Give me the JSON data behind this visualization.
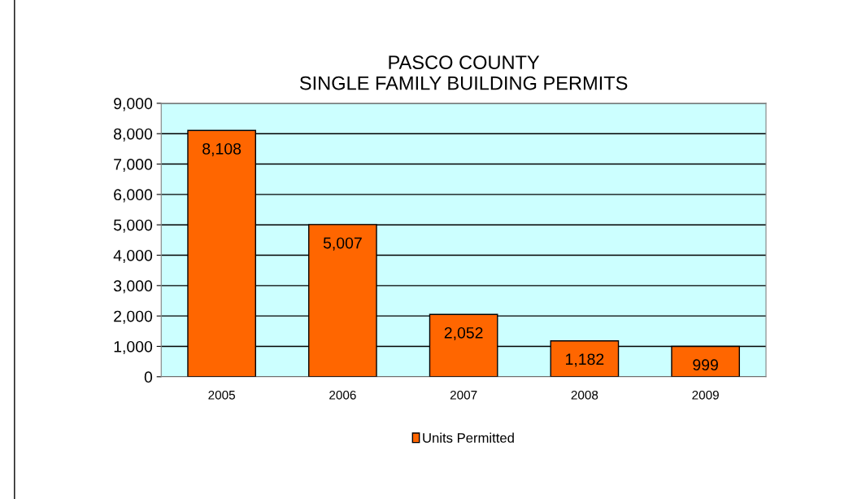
{
  "chart_data": {
    "type": "bar",
    "title": "PASCO COUNTY\nSINGLE FAMILY BUILDING PERMITS",
    "categories": [
      "2005",
      "2006",
      "2007",
      "2008",
      "2009"
    ],
    "series": [
      {
        "name": "Units Permitted",
        "color": "#ff6600",
        "values": [
          8108,
          5007,
          2052,
          1182,
          999
        ],
        "value_labels": [
          "8,108",
          "5,007",
          "2,052",
          "1,182",
          "999"
        ]
      }
    ],
    "ylim": [
      0,
      9000
    ],
    "yticks": [
      {
        "value": 0,
        "label": "0"
      },
      {
        "value": 1000,
        "label": "1,000"
      },
      {
        "value": 2000,
        "label": "2,000"
      },
      {
        "value": 3000,
        "label": "3,000"
      },
      {
        "value": 4000,
        "label": "4,000"
      },
      {
        "value": 5000,
        "label": "5,000"
      },
      {
        "value": 6000,
        "label": "6,000"
      },
      {
        "value": 7000,
        "label": "7,000"
      },
      {
        "value": 8000,
        "label": "8,000"
      },
      {
        "value": 9000,
        "label": "9,000"
      }
    ],
    "grid": "y",
    "legend": "bottom"
  }
}
